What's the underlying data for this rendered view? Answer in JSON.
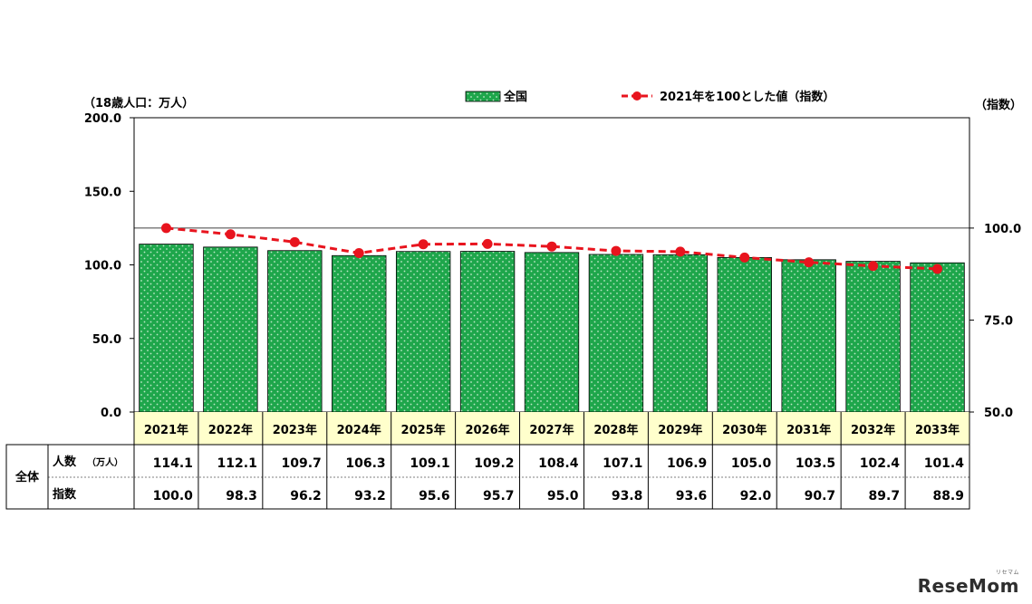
{
  "chart_data": {
    "type": "bar",
    "categories": [
      "2021年",
      "2022年",
      "2023年",
      "2024年",
      "2025年",
      "2026年",
      "2027年",
      "2028年",
      "2029年",
      "2030年",
      "2031年",
      "2032年",
      "2033年"
    ],
    "series": [
      {
        "name": "全国",
        "type": "bar",
        "axis": "left",
        "color": "#1ea64b",
        "values": [
          114.1,
          112.1,
          109.7,
          106.3,
          109.1,
          109.2,
          108.4,
          107.1,
          106.9,
          105.0,
          103.5,
          102.4,
          101.4
        ]
      },
      {
        "name": "2021年を100とした値（指数）",
        "type": "line",
        "axis": "right",
        "color": "#e8141e",
        "line_style": "dashed",
        "values": [
          100.0,
          98.3,
          96.2,
          93.2,
          95.6,
          95.7,
          95.0,
          93.8,
          93.6,
          92.0,
          90.7,
          89.7,
          88.9
        ]
      }
    ],
    "ylabel": "（18歳人口：万人）",
    "ylabel_right": "（指数）",
    "ylim": [
      0,
      200
    ],
    "ylim_right": [
      50,
      130
    ],
    "y_ticks": [
      "0.0",
      "50.0",
      "100.0",
      "150.0",
      "200.0"
    ],
    "y_ticks_right": [
      "50.0",
      "75.0",
      "100.0"
    ],
    "reference_line_right": 100,
    "legend_placement": "top"
  },
  "table": {
    "group_label": "全体",
    "rows": [
      {
        "label": "人数",
        "unit": "（万人）",
        "values": [
          "114.1",
          "112.1",
          "109.7",
          "106.3",
          "109.1",
          "109.2",
          "108.4",
          "107.1",
          "106.9",
          "105.0",
          "103.5",
          "102.4",
          "101.4"
        ]
      },
      {
        "label": "指数",
        "unit": "",
        "values": [
          "100.0",
          "98.3",
          "96.2",
          "93.2",
          "95.6",
          "95.7",
          "95.0",
          "93.8",
          "93.6",
          "92.0",
          "90.7",
          "89.7",
          "88.9"
        ]
      }
    ]
  },
  "watermark": {
    "text": "ReseMom",
    "sub": "リセマム"
  }
}
